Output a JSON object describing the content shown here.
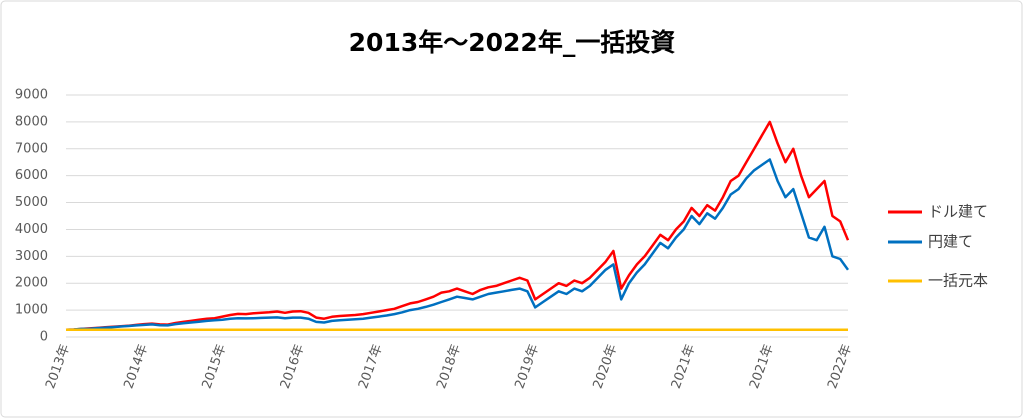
{
  "chart_data": {
    "type": "line",
    "title": "2013年～2022年_一括投資",
    "categories": [
      "2013年",
      null,
      null,
      null,
      null,
      null,
      null,
      null,
      null,
      null,
      "2014年",
      null,
      null,
      null,
      null,
      null,
      null,
      null,
      null,
      null,
      "2015年",
      null,
      null,
      null,
      null,
      null,
      null,
      null,
      null,
      null,
      "2016年",
      null,
      null,
      null,
      null,
      null,
      null,
      null,
      null,
      null,
      "2017年",
      null,
      null,
      null,
      null,
      null,
      null,
      null,
      null,
      null,
      "2018年",
      null,
      null,
      null,
      null,
      null,
      null,
      null,
      null,
      null,
      "2019年",
      null,
      null,
      null,
      null,
      null,
      null,
      null,
      null,
      null,
      "2020年",
      null,
      null,
      null,
      null,
      null,
      null,
      null,
      null,
      null,
      "2021年",
      null,
      null,
      null,
      null,
      null,
      null,
      null,
      null,
      null,
      "2021年",
      null,
      null,
      null,
      null,
      null,
      null,
      null,
      null,
      null,
      "2022年"
    ],
    "series": [
      {
        "name": "ドル建て",
        "color": "#ff0000",
        "values": [
          270,
          280,
          300,
          320,
          340,
          360,
          380,
          400,
          420,
          450,
          480,
          500,
          470,
          460,
          520,
          560,
          600,
          640,
          680,
          700,
          760,
          820,
          860,
          850,
          880,
          900,
          920,
          950,
          900,
          950,
          960,
          900,
          720,
          680,
          750,
          780,
          800,
          820,
          850,
          900,
          950,
          1000,
          1050,
          1150,
          1250,
          1300,
          1400,
          1500,
          1650,
          1700,
          1800,
          1700,
          1600,
          1750,
          1850,
          1900,
          2000,
          2100,
          2200,
          2100,
          1400,
          1600,
          1800,
          2000,
          1900,
          2100,
          2000,
          2200,
          2500,
          2800,
          3200,
          1800,
          2300,
          2700,
          3000,
          3400,
          3800,
          3600,
          4000,
          4300,
          4800,
          4500,
          4900,
          4700,
          5200,
          5800,
          6000,
          6500,
          7000,
          7500,
          8000,
          7200,
          6500,
          7000,
          6000,
          5200,
          5500,
          5800,
          4500,
          4300,
          3600
        ]
      },
      {
        "name": "円建て",
        "color": "#0070c0",
        "values": [
          270,
          280,
          300,
          310,
          330,
          350,
          370,
          390,
          410,
          430,
          450,
          470,
          440,
          430,
          480,
          510,
          540,
          570,
          600,
          620,
          640,
          680,
          700,
          690,
          700,
          710,
          720,
          730,
          700,
          720,
          720,
          680,
          560,
          540,
          600,
          620,
          640,
          660,
          680,
          720,
          760,
          800,
          850,
          920,
          1000,
          1050,
          1120,
          1200,
          1300,
          1400,
          1500,
          1450,
          1400,
          1500,
          1600,
          1650,
          1700,
          1750,
          1800,
          1700,
          1100,
          1300,
          1500,
          1700,
          1600,
          1800,
          1700,
          1900,
          2200,
          2500,
          2700,
          1400,
          2000,
          2400,
          2700,
          3100,
          3500,
          3300,
          3700,
          4000,
          4500,
          4200,
          4600,
          4400,
          4800,
          5300,
          5500,
          5900,
          6200,
          6400,
          6600,
          5800,
          5200,
          5500,
          4600,
          3700,
          3600,
          4100,
          3000,
          2900,
          2500
        ]
      },
      {
        "name": "一括元本",
        "color": "#ffc000",
        "values": [
          270,
          270,
          270,
          270,
          270,
          270,
          270,
          270,
          270,
          270,
          270,
          270,
          270,
          270,
          270,
          270,
          270,
          270,
          270,
          270,
          270,
          270,
          270,
          270,
          270,
          270,
          270,
          270,
          270,
          270,
          270,
          270,
          270,
          270,
          270,
          270,
          270,
          270,
          270,
          270,
          270,
          270,
          270,
          270,
          270,
          270,
          270,
          270,
          270,
          270,
          270,
          270,
          270,
          270,
          270,
          270,
          270,
          270,
          270,
          270,
          270,
          270,
          270,
          270,
          270,
          270,
          270,
          270,
          270,
          270,
          270,
          270,
          270,
          270,
          270,
          270,
          270,
          270,
          270,
          270,
          270,
          270,
          270,
          270,
          270,
          270,
          270,
          270,
          270,
          270,
          270,
          270,
          270,
          270,
          270,
          270,
          270,
          270,
          270,
          270,
          270
        ]
      }
    ],
    "ylim": [
      0,
      9000
    ],
    "yticks": [
      0,
      1000,
      2000,
      3000,
      4000,
      5000,
      6000,
      7000,
      8000,
      9000
    ],
    "grid": true,
    "legend": "right"
  }
}
